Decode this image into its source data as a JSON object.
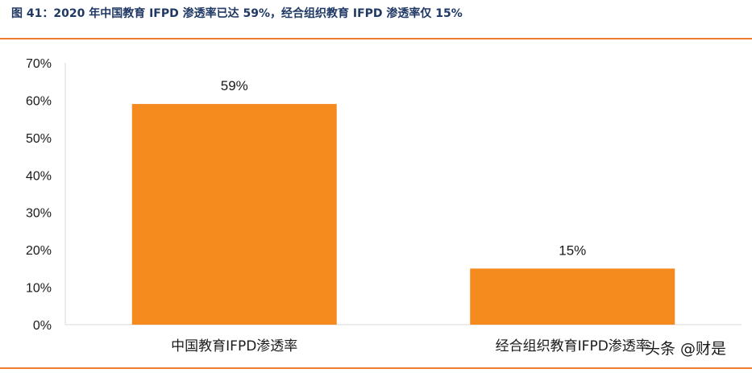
{
  "figure": {
    "title": "图 41：2020 年中国教育 IFPD 渗透率已达 59%，经合组织教育 IFPD 渗透率仅 15%",
    "watermark": "头条 @财是"
  },
  "colors": {
    "bar": "#f58a1f",
    "rule": "#ed7d31",
    "title": "#1f3864",
    "axis": "#d9d9d9",
    "text": "#1a1a1a"
  },
  "chart_data": {
    "type": "bar",
    "categories": [
      "中国教育IFPD渗透率",
      "经合组织教育IFPD渗透率"
    ],
    "values": [
      0.59,
      0.15
    ],
    "value_labels": [
      "59%",
      "15%"
    ],
    "ylim": [
      0,
      0.7
    ],
    "yticks": [
      0,
      0.1,
      0.2,
      0.3,
      0.4,
      0.5,
      0.6,
      0.7
    ],
    "ytick_labels": [
      "0%",
      "10%",
      "20%",
      "30%",
      "40%",
      "50%",
      "60%",
      "70%"
    ],
    "title": "",
    "xlabel": "",
    "ylabel": "",
    "grid": false,
    "legend": "none"
  }
}
